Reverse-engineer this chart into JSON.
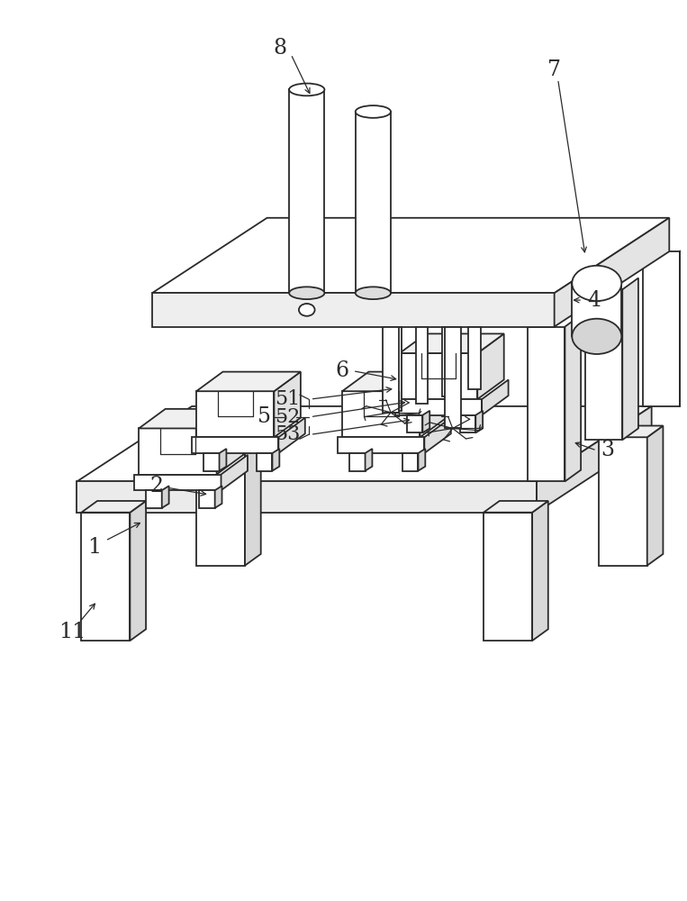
{
  "bg_color": "#ffffff",
  "line_color": "#2a2a2a",
  "lw": 1.3,
  "tlw": 0.9,
  "figsize": [
    7.63,
    10.0
  ],
  "dpi": 100
}
